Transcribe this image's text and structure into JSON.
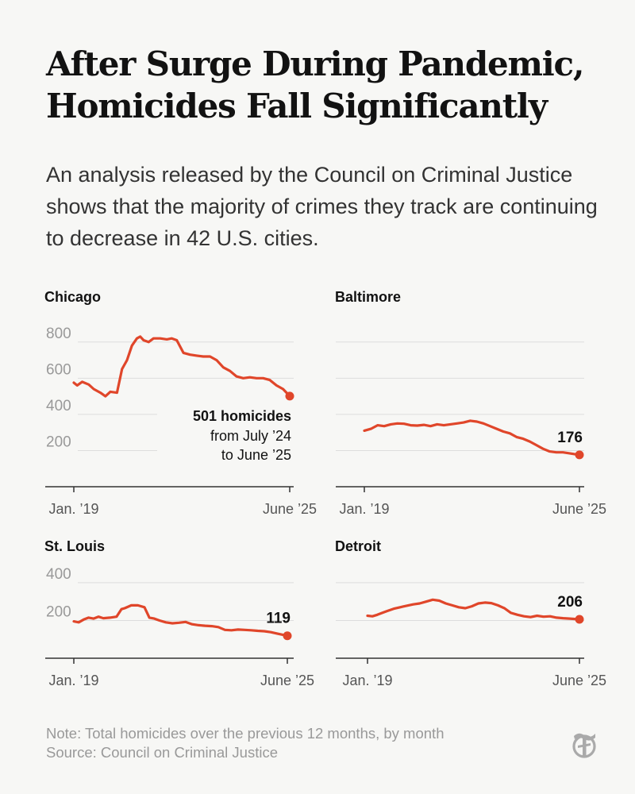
{
  "title": "After Surge During Pandemic, Homicides Fall Significantly",
  "subtitle": "An analysis released by the Council on Criminal Justice shows that the majority of crimes they track are continuing to decrease in 42 U.S. cities.",
  "footer": {
    "note": "Note: Total homicides over the previous 12 months, by month",
    "source": "Source: Council on Criminal Justice"
  },
  "colors": {
    "line": "#e0462a",
    "grid": "#dddddd",
    "tick_text": "#999999",
    "text": "#121212"
  },
  "logo_icon": "nyt-t-logo-icon",
  "chart_data": [
    {
      "type": "line",
      "title": "Chicago",
      "ylim": [
        0,
        900
      ],
      "yticks": [
        200,
        400,
        600,
        800
      ],
      "ytick_labels": [
        "200",
        "400",
        "600",
        "800"
      ],
      "xrange": [
        2019.0,
        2025.5
      ],
      "xtick_labels": [
        "Jan. ’19",
        "June ’25"
      ],
      "last_value_label": "501 homicides",
      "annotation_lines": [
        "from July ’24",
        "to June ’25"
      ],
      "series": [
        {
          "x": [
            2019.0,
            2019.1,
            2019.25,
            2019.45,
            2019.6,
            2019.8,
            2019.95,
            2020.1,
            2020.3,
            2020.45,
            2020.6,
            2020.75,
            2020.9,
            2021.0,
            2021.1,
            2021.25,
            2021.4,
            2021.6,
            2021.8,
            2021.95,
            2022.1,
            2022.3,
            2022.5,
            2022.7,
            2022.9,
            2023.1,
            2023.3,
            2023.5,
            2023.7,
            2023.9,
            2024.1,
            2024.3,
            2024.5,
            2024.7,
            2024.9,
            2025.1,
            2025.3,
            2025.5
          ],
          "y": [
            575,
            560,
            580,
            565,
            540,
            520,
            500,
            525,
            520,
            650,
            700,
            780,
            820,
            830,
            810,
            800,
            820,
            820,
            815,
            820,
            810,
            740,
            730,
            725,
            720,
            720,
            700,
            660,
            640,
            610,
            600,
            605,
            600,
            600,
            590,
            560,
            540,
            501
          ]
        }
      ]
    },
    {
      "type": "line",
      "title": "Baltimore",
      "ylim": [
        0,
        900
      ],
      "yticks": [
        200,
        400,
        600,
        800
      ],
      "ytick_labels": [],
      "xrange": [
        2019.0,
        2025.5
      ],
      "xtick_labels": [
        "Jan. ’19",
        "June ’25"
      ],
      "last_value_label": "176",
      "series": [
        {
          "x": [
            2019.0,
            2019.2,
            2019.4,
            2019.6,
            2019.8,
            2020.0,
            2020.2,
            2020.4,
            2020.6,
            2020.8,
            2021.0,
            2021.2,
            2021.4,
            2021.6,
            2021.8,
            2022.0,
            2022.2,
            2022.4,
            2022.6,
            2022.8,
            2023.0,
            2023.2,
            2023.4,
            2023.6,
            2023.8,
            2024.0,
            2024.2,
            2024.4,
            2024.6,
            2024.8,
            2025.0,
            2025.2,
            2025.5
          ],
          "y": [
            310,
            320,
            340,
            335,
            345,
            350,
            348,
            340,
            338,
            342,
            335,
            345,
            340,
            345,
            350,
            355,
            365,
            360,
            350,
            335,
            320,
            305,
            295,
            275,
            265,
            250,
            230,
            210,
            195,
            190,
            190,
            185,
            176
          ]
        }
      ]
    },
    {
      "type": "line",
      "title": "St. Louis",
      "ylim": [
        0,
        450
      ],
      "yticks": [
        200,
        400
      ],
      "ytick_labels": [
        "200",
        "400"
      ],
      "xrange": [
        2019.0,
        2025.5
      ],
      "xtick_labels": [
        "Jan. ’19",
        "June ’25"
      ],
      "last_value_label": "119",
      "series": [
        {
          "x": [
            2019.0,
            2019.15,
            2019.3,
            2019.45,
            2019.6,
            2019.75,
            2019.9,
            2020.1,
            2020.3,
            2020.45,
            2020.55,
            2020.75,
            2020.95,
            2021.15,
            2021.3,
            2021.45,
            2021.6,
            2021.8,
            2022.0,
            2022.2,
            2022.4,
            2022.6,
            2022.8,
            2023.0,
            2023.2,
            2023.4,
            2023.6,
            2023.8,
            2024.0,
            2024.2,
            2024.4,
            2024.6,
            2024.8,
            2025.0,
            2025.2,
            2025.5
          ],
          "y": [
            195,
            190,
            205,
            215,
            210,
            220,
            212,
            215,
            220,
            260,
            265,
            280,
            280,
            270,
            215,
            210,
            200,
            190,
            185,
            188,
            192,
            180,
            175,
            172,
            170,
            165,
            150,
            148,
            152,
            150,
            148,
            145,
            143,
            138,
            130,
            119
          ]
        }
      ]
    },
    {
      "type": "line",
      "title": "Detroit",
      "ylim": [
        0,
        450
      ],
      "yticks": [
        200,
        400
      ],
      "ytick_labels": [],
      "xrange": [
        2019.0,
        2025.5
      ],
      "xtick_labels": [
        "Jan. ’19",
        "June ’25"
      ],
      "last_value_label": "206",
      "series": [
        {
          "x": [
            2019.0,
            2019.15,
            2019.3,
            2019.45,
            2019.6,
            2019.8,
            2020.0,
            2020.2,
            2020.4,
            2020.6,
            2020.8,
            2021.0,
            2021.2,
            2021.4,
            2021.6,
            2021.8,
            2022.0,
            2022.2,
            2022.4,
            2022.6,
            2022.8,
            2023.0,
            2023.2,
            2023.4,
            2023.6,
            2023.8,
            2024.0,
            2024.2,
            2024.4,
            2024.6,
            2024.8,
            2025.0,
            2025.2,
            2025.5
          ],
          "y": [
            225,
            222,
            230,
            240,
            250,
            262,
            270,
            278,
            285,
            290,
            300,
            310,
            305,
            290,
            280,
            270,
            265,
            275,
            290,
            295,
            292,
            280,
            265,
            240,
            230,
            222,
            218,
            225,
            220,
            222,
            215,
            212,
            210,
            206
          ]
        }
      ]
    }
  ]
}
